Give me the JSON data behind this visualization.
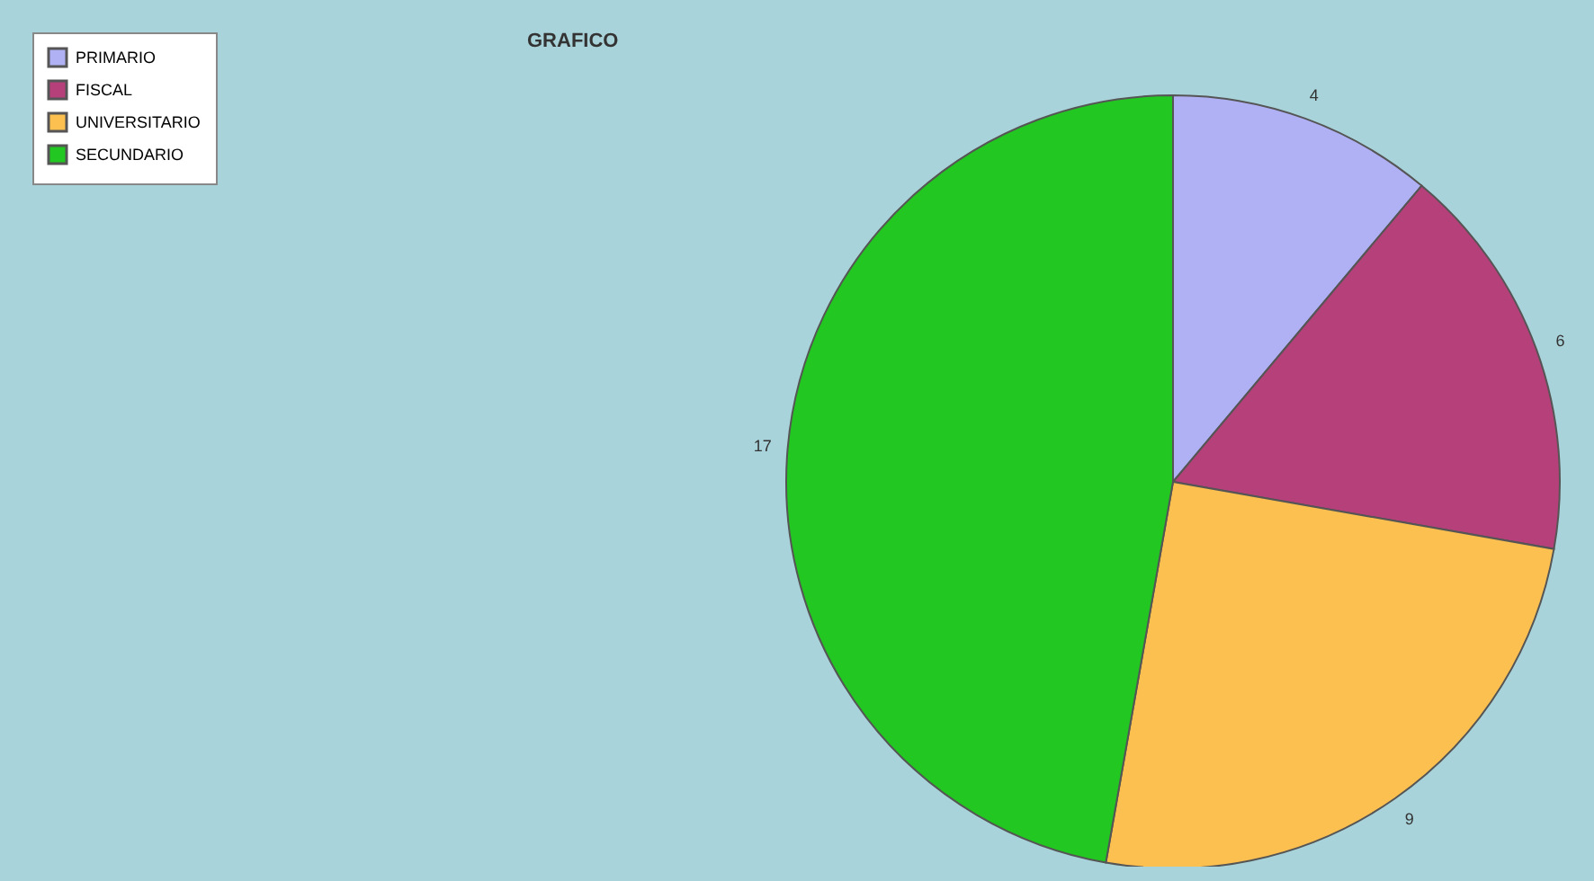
{
  "chart_data": {
    "type": "pie",
    "title": "GRAFICO",
    "categories": [
      "PRIMARIO",
      "FISCAL",
      "UNIVERSITARIO",
      "SECUNDARIO"
    ],
    "values": [
      4,
      6,
      9,
      17
    ],
    "colors": [
      "#b0b0f5",
      "#b5407a",
      "#fbc050",
      "#22c722"
    ],
    "data_labels": true,
    "legend": "top left"
  }
}
